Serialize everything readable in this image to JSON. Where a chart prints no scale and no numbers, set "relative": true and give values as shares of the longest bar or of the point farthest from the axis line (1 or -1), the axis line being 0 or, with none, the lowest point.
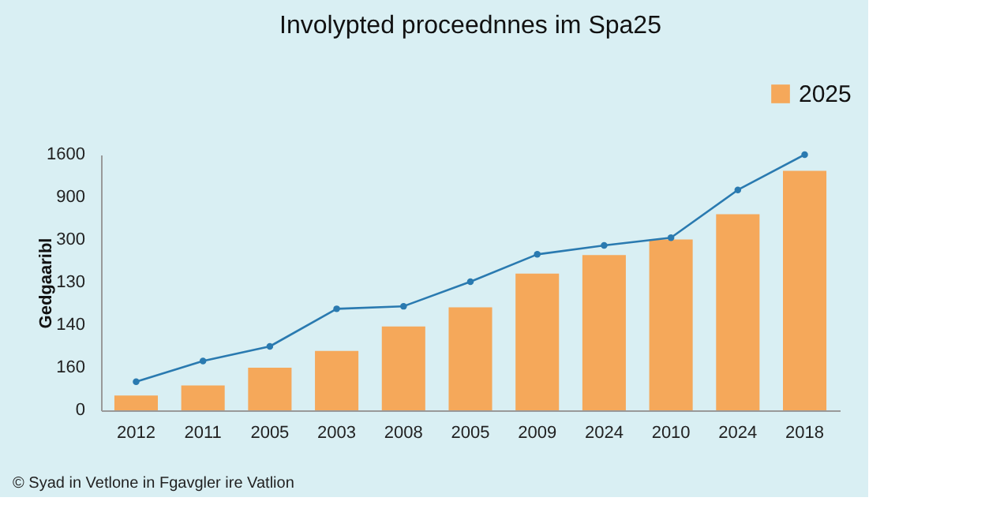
{
  "chart_data": {
    "type": "bar",
    "title": "Involypted proceednnes im Spa25",
    "ylabel": "Gedgaaribl",
    "relative": true,
    "categories": [
      "2012",
      "2011",
      "2005",
      "2003",
      "2008",
      "2005",
      "2009",
      "2024",
      "2010",
      "2024",
      "2018"
    ],
    "series": [
      {
        "name": "2025",
        "color": "#f5a85a",
        "values": [
          0.058,
          0.097,
          0.167,
          0.232,
          0.328,
          0.403,
          0.535,
          0.607,
          0.668,
          0.767,
          0.937
        ]
      },
      {
        "type": "line",
        "color": "#2a7ab0",
        "marker": "circle",
        "values": [
          0.112,
          0.193,
          0.25,
          0.397,
          0.407,
          0.503,
          0.61,
          0.645,
          0.675,
          0.862,
          1.0
        ]
      }
    ],
    "legend": "top right",
    "annotations": [
      "1600",
      "900",
      "300",
      "130",
      "140",
      "160",
      "0",
      "© Syad in Vetlone in Fgavgler ire Vatlion"
    ]
  }
}
